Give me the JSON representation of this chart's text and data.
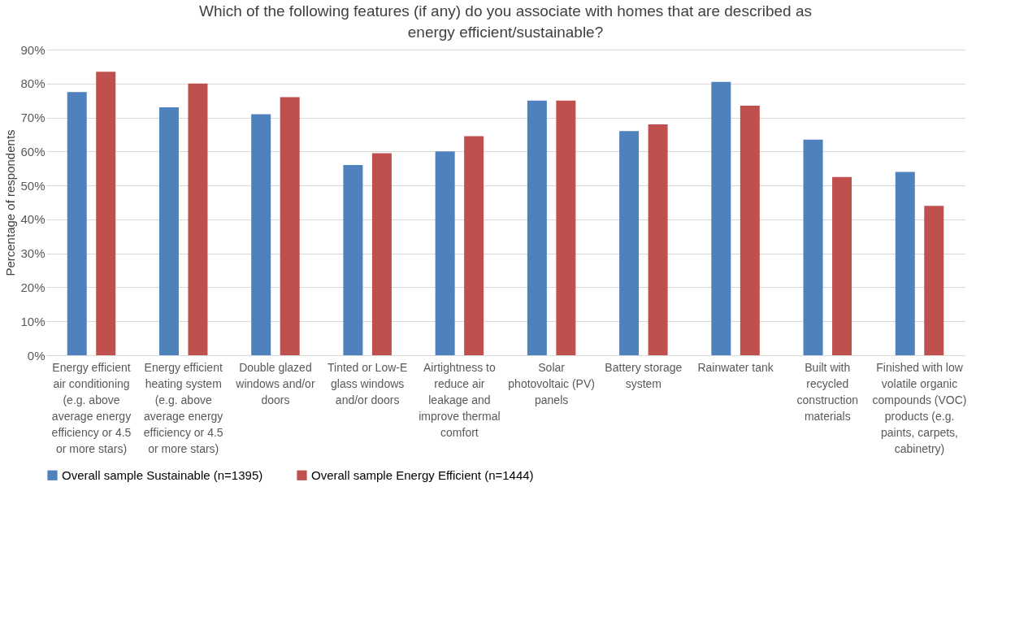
{
  "chart_data": {
    "type": "bar",
    "title": "Which of the following features (if any) do you associate with homes that are described as energy efficient/sustainable?",
    "ylabel": "Percentage of respondents",
    "categories": [
      "Energy efficient air conditioning (e.g. above average energy efficiency or 4.5 or more stars)",
      "Energy efficient heating system (e.g. above average energy efficiency or 4.5 or more stars)",
      "Double glazed windows and/or doors",
      "Tinted or Low-E glass windows and/or doors",
      "Airtightness to reduce air leakage and improve thermal comfort",
      "Solar photovoltaic (PV) panels",
      "Battery storage system",
      "Rainwater tank",
      "Built with recycled construction materials",
      "Finished with low volatile organic compounds (VOC) products (e.g. paints, carpets, cabinetry)"
    ],
    "series": [
      {
        "name": "Overall sample Sustainable (n=1395)",
        "color": "#4f81bd",
        "values": [
          77.5,
          73,
          71,
          56,
          60,
          75,
          66,
          80.5,
          63.5,
          54
        ]
      },
      {
        "name": "Overall sample Energy Efficient (n=1444)",
        "color": "#c0504d",
        "values": [
          83.5,
          80,
          76,
          59.5,
          64.5,
          75,
          68,
          73.5,
          52.5,
          44
        ]
      }
    ],
    "ylim": [
      0,
      90
    ],
    "yticks": [
      {
        "value": 0,
        "label": "0%"
      },
      {
        "value": 10,
        "label": "10%"
      },
      {
        "value": 20,
        "label": "20%"
      },
      {
        "value": 30,
        "label": "30%"
      },
      {
        "value": 40,
        "label": "40%"
      },
      {
        "value": 50,
        "label": "50%"
      },
      {
        "value": 60,
        "label": "60%"
      },
      {
        "value": 70,
        "label": "70%"
      },
      {
        "value": 80,
        "label": "80%"
      },
      {
        "value": 90,
        "label": "90%"
      }
    ],
    "grid": "y",
    "legend": "bottom"
  }
}
